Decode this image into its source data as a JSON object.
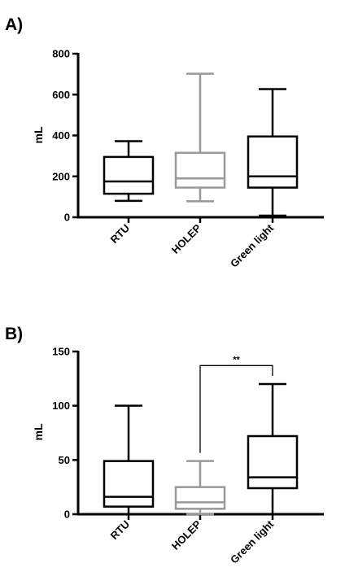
{
  "chart_data": [
    {
      "type": "box",
      "panel_label": "A)",
      "ylabel": "mL",
      "ylim": [
        0,
        800
      ],
      "yticks": [
        "0",
        "200",
        "400",
        "600",
        "800"
      ],
      "categories": [
        "RTU",
        "HOLEP",
        "Green light"
      ],
      "colors": [
        "#000000",
        "#999999",
        "#000000"
      ],
      "boxes": [
        {
          "min": 80,
          "q1": 115,
          "median": 175,
          "q3": 295,
          "max": 372
        },
        {
          "min": 78,
          "q1": 145,
          "median": 190,
          "q3": 315,
          "max": 702
        },
        {
          "min": 8,
          "q1": 145,
          "median": 200,
          "q3": 395,
          "max": 627
        }
      ]
    },
    {
      "type": "box",
      "panel_label": "B)",
      "ylabel": "mL",
      "ylim": [
        0,
        150
      ],
      "yticks": [
        "0",
        "50",
        "100",
        "150"
      ],
      "categories": [
        "RTU",
        "HOLEP",
        "Green light"
      ],
      "colors": [
        "#000000",
        "#999999",
        "#000000"
      ],
      "boxes": [
        {
          "min": 0,
          "q1": 7,
          "median": 16,
          "q3": 49,
          "max": 100
        },
        {
          "min": 0,
          "q1": 5,
          "median": 11,
          "q3": 25,
          "max": 49
        },
        {
          "min": 0,
          "q1": 24,
          "median": 34,
          "q3": 72,
          "max": 120
        }
      ],
      "significance": {
        "from": "HOLEP",
        "to": "Green light",
        "label": "**",
        "y": 137
      }
    }
  ]
}
